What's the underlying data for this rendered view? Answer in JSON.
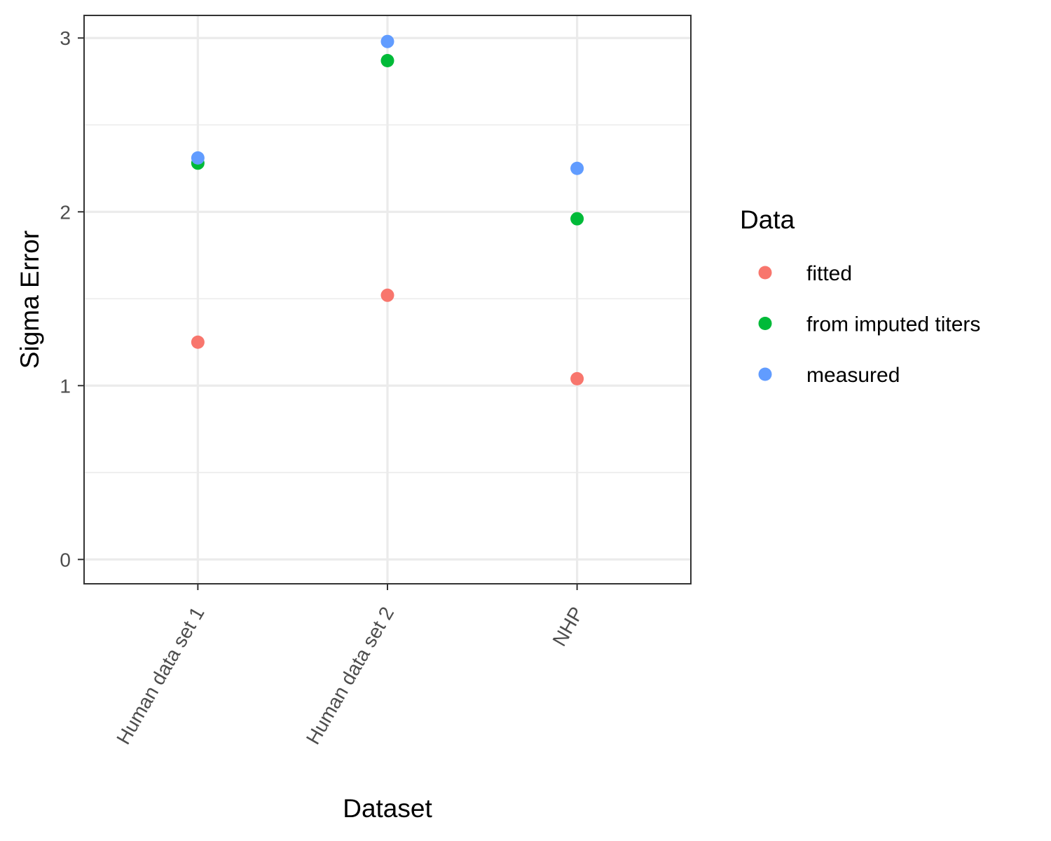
{
  "chart_data": {
    "type": "scatter",
    "categories": [
      "Human data set 1",
      "Human data set 2",
      "NHP"
    ],
    "series": [
      {
        "name": "fitted",
        "color": "#F8766D",
        "values": [
          1.25,
          1.52,
          1.04
        ]
      },
      {
        "name": "from imputed titers",
        "color": "#00BA38",
        "values": [
          2.28,
          2.87,
          1.96
        ]
      },
      {
        "name": "measured",
        "color": "#619CFF",
        "values": [
          2.31,
          2.98,
          2.25
        ]
      }
    ],
    "xlabel": "Dataset",
    "ylabel": "Sigma Error",
    "ylim": [
      -0.14,
      3.13
    ],
    "yticks": [
      0,
      1,
      2,
      3
    ],
    "ytick_labels": [
      "0",
      "1",
      "2",
      "3"
    ],
    "grid": true,
    "legend": {
      "title": "Data",
      "placement": "right"
    }
  }
}
